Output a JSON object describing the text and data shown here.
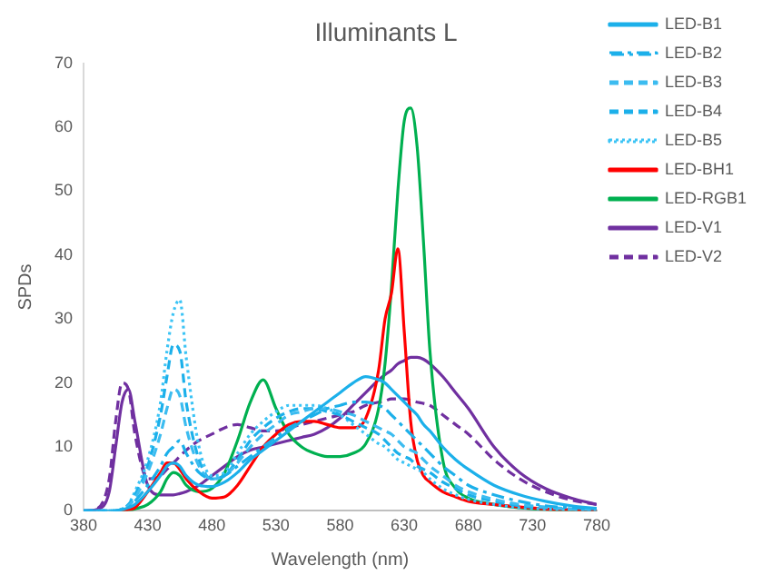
{
  "chart_data": {
    "type": "line",
    "title": "Illuminants L",
    "xlabel": "Wavelength (nm)",
    "ylabel": "SPDs",
    "x": [
      380,
      390,
      400,
      405,
      410,
      415,
      420,
      430,
      440,
      445,
      450,
      455,
      460,
      470,
      480,
      490,
      500,
      510,
      520,
      530,
      540,
      550,
      560,
      570,
      580,
      590,
      600,
      610,
      615,
      620,
      625,
      630,
      635,
      640,
      645,
      650,
      660,
      670,
      680,
      700,
      720,
      740,
      760,
      780
    ],
    "xlim": [
      380,
      780
    ],
    "xticks": [
      380,
      430,
      480,
      530,
      580,
      630,
      680,
      730,
      780
    ],
    "ylim": [
      0,
      70
    ],
    "yticks": [
      0,
      10,
      20,
      30,
      40,
      50,
      60,
      70
    ],
    "grid": false,
    "legend": "right",
    "marker": "none",
    "series": [
      {
        "name": "LED-B1",
        "color": "#1cb0ea",
        "line_style": "solid",
        "values": [
          0,
          0,
          0,
          0,
          0.2,
          0.5,
          1,
          3,
          5.5,
          7,
          7.5,
          7,
          5.5,
          4,
          3.8,
          4.5,
          6,
          8,
          9.5,
          11,
          12.5,
          14,
          15.5,
          17,
          18.5,
          20,
          21,
          20.5,
          20,
          19,
          18,
          17,
          16,
          15,
          13.5,
          12.5,
          10,
          8,
          6.5,
          4,
          2.5,
          1.5,
          0.8,
          0.4
        ]
      },
      {
        "name": "LED-B2",
        "color": "#1cb0ea",
        "line_style": "dashdot",
        "values": [
          0,
          0,
          0,
          0,
          0.2,
          0.5,
          1.5,
          4,
          7,
          9,
          10,
          11,
          9,
          6,
          5,
          5.5,
          7,
          8.5,
          10,
          11.5,
          13,
          14,
          15,
          16,
          16.5,
          17,
          17,
          16.5,
          16,
          15,
          14,
          13,
          12,
          11,
          10,
          9,
          7,
          5.5,
          4,
          2.5,
          1.5,
          0.8,
          0.5,
          0.3
        ]
      },
      {
        "name": "LED-B3",
        "color": "#3cbcf0",
        "line_style": "dashed",
        "values": [
          0,
          0,
          0,
          0,
          0.3,
          0.8,
          2,
          6,
          12,
          16,
          19,
          18,
          13,
          7,
          5,
          5.5,
          7.5,
          10,
          12,
          13.5,
          15,
          15.5,
          16,
          16,
          15.5,
          15,
          14,
          13,
          12.5,
          12,
          11,
          10,
          9.5,
          9,
          8,
          7,
          5.5,
          4,
          3,
          1.8,
          1,
          0.6,
          0.3,
          0.2
        ]
      },
      {
        "name": "LED-B4",
        "color": "#1cb0ea",
        "line_style": "dashed",
        "values": [
          0,
          0,
          0,
          0,
          0.3,
          1,
          2.5,
          7,
          15,
          21,
          26,
          25,
          17,
          8,
          5,
          5.5,
          8,
          11,
          13,
          14.5,
          15.5,
          16,
          16,
          15.5,
          15,
          14,
          13,
          12,
          11,
          10,
          9,
          8.5,
          8,
          7,
          6.5,
          6,
          4.5,
          3.5,
          2.5,
          1.5,
          0.8,
          0.5,
          0.3,
          0.2
        ]
      },
      {
        "name": "LED-B5",
        "color": "#3cc4f5",
        "line_style": "dotted",
        "values": [
          0,
          0,
          0,
          0,
          0.3,
          1,
          3,
          8,
          17,
          25,
          31,
          33,
          24,
          10,
          5.5,
          6,
          9,
          12,
          14,
          15.5,
          16.5,
          16.5,
          16.5,
          16,
          15,
          13.5,
          12,
          10.5,
          10,
          9,
          8,
          7.5,
          7,
          6.5,
          6,
          5,
          3.5,
          2.5,
          1.8,
          1,
          0.5,
          0.3,
          0.2,
          0.1
        ]
      },
      {
        "name": "LED-BH1",
        "color": "#ff0000",
        "line_style": "solid",
        "values": [
          null,
          null,
          null,
          0,
          0,
          0.2,
          0.5,
          3,
          6,
          7.5,
          7.5,
          6.5,
          5,
          3,
          2,
          2.2,
          4,
          7,
          10,
          12,
          13.5,
          14,
          14,
          13.5,
          13,
          13,
          14.5,
          22,
          30,
          34,
          41,
          28,
          14,
          8,
          5.5,
          4.5,
          3,
          2.2,
          1.5,
          1,
          0.6,
          0.3,
          0.2,
          0.1
        ]
      },
      {
        "name": "LED-RGB1",
        "color": "#00b050",
        "line_style": "solid",
        "values": [
          null,
          null,
          null,
          null,
          0,
          0,
          0.3,
          1,
          3,
          5,
          6,
          5.5,
          4,
          3,
          3.5,
          6,
          11,
          17,
          20.5,
          16,
          12,
          10,
          9,
          8.5,
          8.5,
          9,
          10.5,
          16,
          23,
          35,
          50,
          61,
          63,
          57,
          42,
          25,
          8,
          3.5,
          2,
          1,
          0.5,
          0.2,
          0.1,
          0.1
        ]
      },
      {
        "name": "LED-V1",
        "color": "#7030a0",
        "line_style": "solid",
        "values": [
          0,
          0.2,
          3,
          10,
          17,
          19,
          14,
          4,
          2.5,
          2.5,
          2.5,
          2.7,
          3,
          4,
          5.5,
          7,
          8.5,
          9.5,
          10,
          10.5,
          11,
          11.5,
          12,
          13,
          14.5,
          16.5,
          18.5,
          20.5,
          21.3,
          22,
          23,
          23.5,
          24,
          24,
          23.7,
          23,
          21,
          18.5,
          16,
          10,
          6,
          3.5,
          2,
          1
        ]
      },
      {
        "name": "LED-V2",
        "color": "#7030a0",
        "line_style": "dashed",
        "values": [
          0,
          0.3,
          5,
          14,
          20,
          19,
          12,
          5,
          5.5,
          6.5,
          7.5,
          8.5,
          9.5,
          11,
          12,
          13,
          13.5,
          13,
          12.5,
          12.5,
          13,
          13.5,
          14,
          14.5,
          15,
          15.5,
          16.5,
          17,
          17.2,
          17.5,
          17.5,
          17.5,
          17.3,
          17,
          16.8,
          16.5,
          15,
          13.5,
          12,
          8,
          5,
          3,
          1.7,
          1
        ]
      }
    ]
  }
}
